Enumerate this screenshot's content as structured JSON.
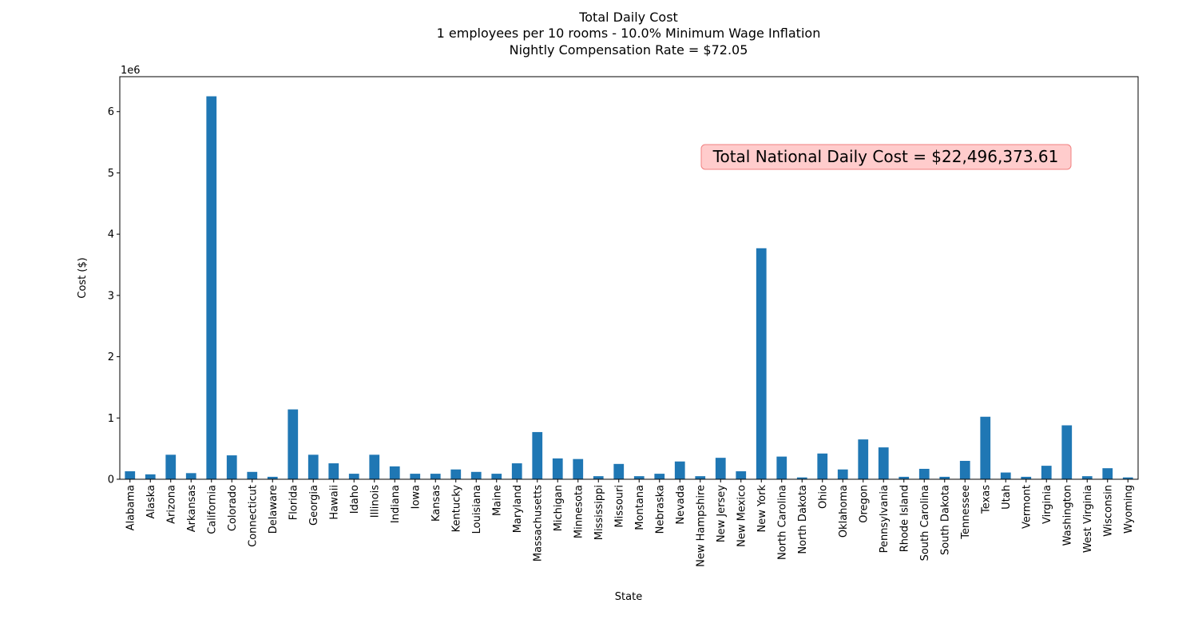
{
  "chart_data": {
    "type": "bar",
    "title_lines": [
      "Total Daily Cost",
      "1 employees per 10 rooms - 10.0% Minimum Wage Inflation",
      "Nightly Compensation Rate = $72.05"
    ],
    "xlabel": "State",
    "ylabel": "Cost ($)",
    "y_offset_label": "1e6",
    "ylim": [
      0,
      6.57
    ],
    "yticks": [
      0,
      1,
      2,
      3,
      4,
      5,
      6
    ],
    "bar_color": "#1f77b4",
    "annotation": {
      "text": "Total National Daily Cost = $22,496,373.61",
      "box_fill": "#ffcccc",
      "box_stroke": "#f08080"
    },
    "categories": [
      "Alabama",
      "Alaska",
      "Arizona",
      "Arkansas",
      "California",
      "Colorado",
      "Connecticut",
      "Delaware",
      "Florida",
      "Georgia",
      "Hawaii",
      "Idaho",
      "Illinois",
      "Indiana",
      "Iowa",
      "Kansas",
      "Kentucky",
      "Louisiana",
      "Maine",
      "Maryland",
      "Massachusetts",
      "Michigan",
      "Minnesota",
      "Mississippi",
      "Missouri",
      "Montana",
      "Nebraska",
      "Nevada",
      "New Hampshire",
      "New Jersey",
      "New Mexico",
      "New York",
      "North Carolina",
      "North Dakota",
      "Ohio",
      "Oklahoma",
      "Oregon",
      "Pennsylvania",
      "Rhode Island",
      "South Carolina",
      "South Dakota",
      "Tennessee",
      "Texas",
      "Utah",
      "Vermont",
      "Virginia",
      "Washington",
      "West Virginia",
      "Wisconsin",
      "Wyoming"
    ],
    "values": [
      0.13,
      0.08,
      0.4,
      0.1,
      6.25,
      0.39,
      0.12,
      0.04,
      1.14,
      0.4,
      0.26,
      0.09,
      0.4,
      0.21,
      0.09,
      0.09,
      0.16,
      0.12,
      0.09,
      0.26,
      0.77,
      0.34,
      0.33,
      0.05,
      0.25,
      0.05,
      0.09,
      0.29,
      0.05,
      0.35,
      0.13,
      3.77,
      0.37,
      0.03,
      0.42,
      0.16,
      0.65,
      0.52,
      0.04,
      0.17,
      0.04,
      0.3,
      1.02,
      0.11,
      0.04,
      0.22,
      0.88,
      0.05,
      0.18,
      0.03
    ]
  }
}
